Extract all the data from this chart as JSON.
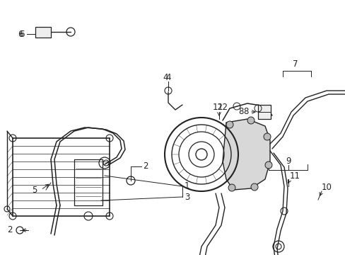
{
  "background_color": "#ffffff",
  "line_color": "#222222",
  "label_fontsize": 8.5,
  "fig_width": 4.89,
  "fig_height": 3.6,
  "dpi": 100
}
